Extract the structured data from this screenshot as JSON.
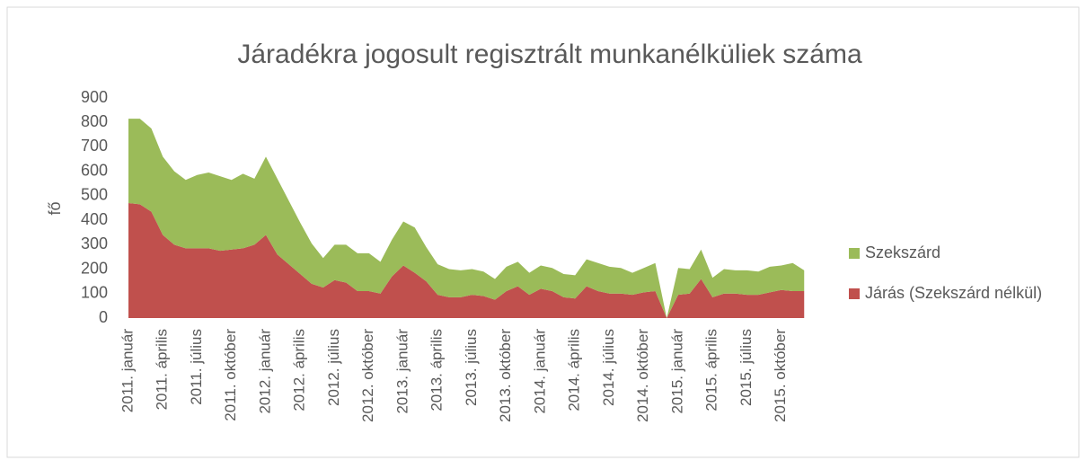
{
  "chart_data": {
    "type": "stacked_area",
    "title": "Járadékra jogosult regisztrált munkanélküliek száma",
    "y_label": "fő",
    "categories": [
      "2011. január",
      null,
      null,
      "2011. április",
      null,
      null,
      "2011. július",
      null,
      null,
      "2011. október",
      null,
      null,
      "2012. január",
      null,
      null,
      "2012. április",
      null,
      null,
      "2012. július",
      null,
      null,
      "2012. október",
      null,
      null,
      "2013. január",
      null,
      null,
      "2013. április",
      null,
      null,
      "2013. július",
      null,
      null,
      "2013. október",
      null,
      null,
      "2014. január",
      null,
      null,
      "2014. április",
      null,
      null,
      "2014. július",
      null,
      null,
      "2014. október",
      null,
      null,
      "2015. január",
      null,
      null,
      "2015. április",
      null,
      null,
      "2015. július",
      null,
      null,
      "2015. október",
      null,
      null
    ],
    "series": [
      {
        "name": "Szekszárd",
        "color": "#9bbb59",
        "values": [
          345,
          350,
          340,
          320,
          300,
          280,
          300,
          310,
          305,
          285,
          305,
          270,
          320,
          310,
          260,
          210,
          165,
          120,
          145,
          155,
          155,
          155,
          130,
          150,
          180,
          185,
          140,
          125,
          115,
          110,
          105,
          100,
          85,
          100,
          100,
          90,
          95,
          95,
          95,
          95,
          110,
          115,
          110,
          105,
          90,
          100,
          115,
          0,
          110,
          100,
          120,
          80,
          100,
          95,
          100,
          95,
          105,
          100,
          115,
          85
        ]
      },
      {
        "name": "Járás (Szekszárd nélkül)",
        "color": "#c0504d",
        "values": [
          470,
          465,
          435,
          340,
          300,
          285,
          285,
          285,
          275,
          280,
          285,
          300,
          340,
          260,
          220,
          180,
          140,
          125,
          155,
          145,
          110,
          110,
          100,
          170,
          215,
          185,
          150,
          95,
          85,
          85,
          95,
          90,
          75,
          110,
          130,
          95,
          120,
          110,
          85,
          80,
          130,
          110,
          100,
          100,
          95,
          105,
          110,
          0,
          95,
          100,
          160,
          85,
          100,
          100,
          95,
          95,
          105,
          115,
          110,
          110
        ]
      }
    ],
    "stack_bottom_first": [
      "Járás (Szekszárd nélkül)",
      "Szekszárd"
    ],
    "ylim": [
      0,
      900
    ],
    "yticks": [
      0,
      100,
      200,
      300,
      400,
      500,
      600,
      700,
      800,
      900
    ],
    "grid": false,
    "legend": "right"
  }
}
